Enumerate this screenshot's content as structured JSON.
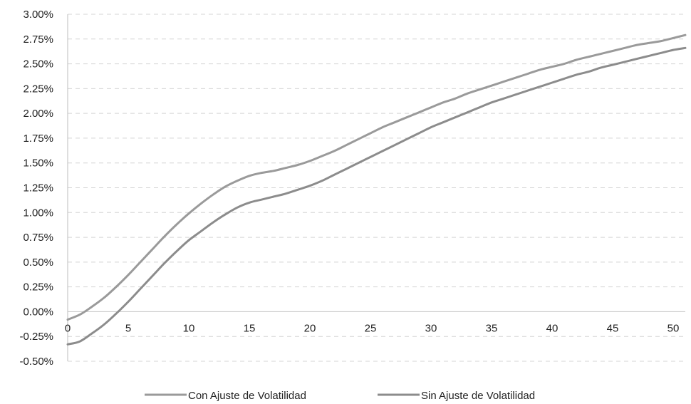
{
  "chart_data": {
    "type": "line",
    "title": "",
    "xlabel": "",
    "ylabel": "",
    "xlim": [
      0,
      51
    ],
    "ylim": [
      -0.5,
      3.0
    ],
    "x_ticks": [
      0,
      5,
      10,
      15,
      20,
      25,
      30,
      35,
      40,
      45,
      50
    ],
    "x_tick_labels": [
      "0",
      "5",
      "10",
      "15",
      "20",
      "25",
      "30",
      "35",
      "40",
      "45",
      "50"
    ],
    "y_ticks": [
      -0.5,
      -0.25,
      0,
      0.25,
      0.5,
      0.75,
      1.0,
      1.25,
      1.5,
      1.75,
      2.0,
      2.25,
      2.5,
      2.75,
      3.0
    ],
    "y_tick_labels": [
      "-0.50%",
      "-0.25%",
      "0.00%",
      "0.25%",
      "0.50%",
      "0.75%",
      "1.00%",
      "1.25%",
      "1.50%",
      "1.75%",
      "2.00%",
      "2.25%",
      "2.50%",
      "2.75%",
      "3.00%"
    ],
    "grid": "horizontal dashed",
    "legend": "bottom",
    "x": [
      0,
      1,
      2,
      3,
      4,
      5,
      6,
      7,
      8,
      9,
      10,
      11,
      12,
      13,
      14,
      15,
      16,
      17,
      18,
      19,
      20,
      21,
      22,
      23,
      24,
      25,
      26,
      27,
      28,
      29,
      30,
      31,
      32,
      33,
      34,
      35,
      36,
      37,
      38,
      39,
      40,
      41,
      42,
      43,
      44,
      45,
      46,
      47,
      48,
      49,
      50,
      51
    ],
    "series": [
      {
        "name": "Con Ajuste de Volatilidad",
        "color": "#9a9a9a",
        "values": [
          -0.08,
          -0.03,
          0.05,
          0.14,
          0.25,
          0.37,
          0.5,
          0.63,
          0.76,
          0.88,
          0.99,
          1.09,
          1.18,
          1.26,
          1.32,
          1.37,
          1.4,
          1.42,
          1.45,
          1.48,
          1.52,
          1.57,
          1.62,
          1.68,
          1.74,
          1.8,
          1.86,
          1.91,
          1.96,
          2.01,
          2.06,
          2.11,
          2.15,
          2.2,
          2.24,
          2.28,
          2.32,
          2.36,
          2.4,
          2.44,
          2.47,
          2.5,
          2.54,
          2.57,
          2.6,
          2.63,
          2.66,
          2.69,
          2.71,
          2.73,
          2.76,
          2.79
        ]
      },
      {
        "name": "Sin Ajuste de Volatilidad",
        "color": "#8c8c8c",
        "values": [
          -0.33,
          -0.3,
          -0.22,
          -0.13,
          -0.02,
          0.1,
          0.23,
          0.36,
          0.49,
          0.61,
          0.72,
          0.81,
          0.9,
          0.98,
          1.05,
          1.1,
          1.13,
          1.16,
          1.19,
          1.23,
          1.27,
          1.32,
          1.38,
          1.44,
          1.5,
          1.56,
          1.62,
          1.68,
          1.74,
          1.8,
          1.86,
          1.91,
          1.96,
          2.01,
          2.06,
          2.11,
          2.15,
          2.19,
          2.23,
          2.27,
          2.31,
          2.35,
          2.39,
          2.42,
          2.46,
          2.49,
          2.52,
          2.55,
          2.58,
          2.61,
          2.64,
          2.66
        ]
      }
    ]
  }
}
